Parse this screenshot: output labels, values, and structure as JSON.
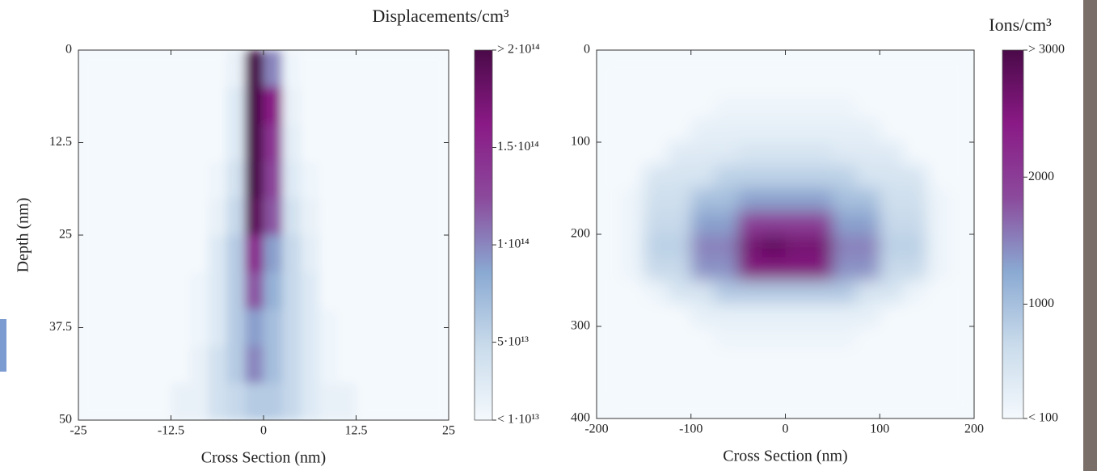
{
  "chart_data": [
    {
      "type": "heatmap",
      "xlabel": "Cross Section (nm)",
      "ylabel": "Depth (nm)",
      "x": [
        -23.75,
        -21.25,
        -18.75,
        -16.25,
        -13.75,
        -11.25,
        -8.75,
        -6.25,
        -3.75,
        -1.25,
        1.25,
        3.75,
        6.25,
        8.75,
        11.25,
        13.75,
        16.25,
        18.75,
        21.25,
        23.75
      ],
      "y": [
        2.5,
        7.5,
        12.5,
        17.5,
        22.5,
        27.5,
        32.5,
        37.5,
        42.5,
        47.5
      ],
      "values": [
        [
          10000000000000.0,
          10000000000000.0,
          10000000000000.0,
          10000000000000.0,
          10000000000000.0,
          10000000000000.0,
          10000000000000.0,
          10000000000000.0,
          20000000000000.0,
          200000000000000.0,
          100000000000000.0,
          15000000000000.0,
          10000000000000.0,
          10000000000000.0,
          10000000000000.0,
          10000000000000.0,
          10000000000000.0,
          10000000000000.0,
          10000000000000.0,
          10000000000000.0
        ],
        [
          10000000000000.0,
          10000000000000.0,
          10000000000000.0,
          10000000000000.0,
          10000000000000.0,
          10000000000000.0,
          10000000000000.0,
          10000000000000.0,
          30000000000000.0,
          200000000000000.0,
          160000000000000.0,
          20000000000000.0,
          10000000000000.0,
          10000000000000.0,
          10000000000000.0,
          10000000000000.0,
          10000000000000.0,
          10000000000000.0,
          10000000000000.0,
          10000000000000.0
        ],
        [
          10000000000000.0,
          10000000000000.0,
          10000000000000.0,
          10000000000000.0,
          10000000000000.0,
          10000000000000.0,
          10000000000000.0,
          10000000000000.0,
          30000000000000.0,
          200000000000000.0,
          140000000000000.0,
          25000000000000.0,
          10000000000000.0,
          10000000000000.0,
          10000000000000.0,
          10000000000000.0,
          10000000000000.0,
          10000000000000.0,
          10000000000000.0,
          10000000000000.0
        ],
        [
          10000000000000.0,
          10000000000000.0,
          10000000000000.0,
          10000000000000.0,
          10000000000000.0,
          10000000000000.0,
          10000000000000.0,
          15000000000000.0,
          40000000000000.0,
          200000000000000.0,
          130000000000000.0,
          30000000000000.0,
          15000000000000.0,
          10000000000000.0,
          10000000000000.0,
          10000000000000.0,
          10000000000000.0,
          10000000000000.0,
          10000000000000.0,
          10000000000000.0
        ],
        [
          10000000000000.0,
          10000000000000.0,
          10000000000000.0,
          10000000000000.0,
          10000000000000.0,
          10000000000000.0,
          10000000000000.0,
          20000000000000.0,
          50000000000000.0,
          190000000000000.0,
          120000000000000.0,
          40000000000000.0,
          20000000000000.0,
          10000000000000.0,
          10000000000000.0,
          10000000000000.0,
          10000000000000.0,
          10000000000000.0,
          10000000000000.0,
          10000000000000.0
        ],
        [
          10000000000000.0,
          10000000000000.0,
          10000000000000.0,
          10000000000000.0,
          10000000000000.0,
          10000000000000.0,
          10000000000000.0,
          30000000000000.0,
          60000000000000.0,
          150000000000000.0,
          90000000000000.0,
          50000000000000.0,
          25000000000000.0,
          10000000000000.0,
          10000000000000.0,
          10000000000000.0,
          10000000000000.0,
          10000000000000.0,
          10000000000000.0,
          10000000000000.0
        ],
        [
          10000000000000.0,
          10000000000000.0,
          10000000000000.0,
          10000000000000.0,
          10000000000000.0,
          10000000000000.0,
          15000000000000.0,
          30000000000000.0,
          60000000000000.0,
          120000000000000.0,
          80000000000000.0,
          50000000000000.0,
          30000000000000.0,
          10000000000000.0,
          10000000000000.0,
          10000000000000.0,
          10000000000000.0,
          10000000000000.0,
          10000000000000.0,
          10000000000000.0
        ],
        [
          10000000000000.0,
          10000000000000.0,
          10000000000000.0,
          10000000000000.0,
          10000000000000.0,
          10000000000000.0,
          15000000000000.0,
          30000000000000.0,
          60000000000000.0,
          90000000000000.0,
          70000000000000.0,
          50000000000000.0,
          30000000000000.0,
          15000000000000.0,
          10000000000000.0,
          10000000000000.0,
          10000000000000.0,
          10000000000000.0,
          10000000000000.0,
          10000000000000.0
        ],
        [
          10000000000000.0,
          10000000000000.0,
          10000000000000.0,
          10000000000000.0,
          10000000000000.0,
          10000000000000.0,
          20000000000000.0,
          40000000000000.0,
          60000000000000.0,
          100000000000000.0,
          70000000000000.0,
          50000000000000.0,
          30000000000000.0,
          15000000000000.0,
          10000000000000.0,
          10000000000000.0,
          10000000000000.0,
          10000000000000.0,
          10000000000000.0,
          10000000000000.0
        ],
        [
          10000000000000.0,
          10000000000000.0,
          10000000000000.0,
          10000000000000.0,
          10000000000000.0,
          20000000000000.0,
          20000000000000.0,
          40000000000000.0,
          50000000000000.0,
          60000000000000.0,
          60000000000000.0,
          50000000000000.0,
          30000000000000.0,
          20000000000000.0,
          20000000000000.0,
          10000000000000.0,
          10000000000000.0,
          10000000000000.0,
          10000000000000.0,
          10000000000000.0
        ]
      ],
      "xlim": [
        -25,
        25
      ],
      "ylim": [
        0,
        50
      ],
      "y_inverted": true,
      "xticks": [
        -25,
        -12.5,
        0,
        12.5,
        25
      ],
      "yticks": [
        0,
        12.5,
        25,
        37.5,
        50
      ],
      "colormap": [
        "#f4f9fd",
        "#c9dbeb",
        "#8aa9d2",
        "#8b4a9c",
        "#8a1a86",
        "#4a0a48"
      ],
      "colorbar": {
        "label": "Displacements/cm³",
        "lim": [
          10000000000000.0,
          200000000000000.0
        ],
        "ticks": [
          {
            "value": 200000000000000.0,
            "label": "> 2·10¹⁴"
          },
          {
            "value": 150000000000000.0,
            "label": "1.5·10¹⁴"
          },
          {
            "value": 100000000000000.0,
            "label": "1·10¹⁴"
          },
          {
            "value": 50000000000000.0,
            "label": "5·10¹³"
          },
          {
            "value": 10000000000000.0,
            "label": "< 1·10¹³"
          }
        ]
      }
    },
    {
      "type": "heatmap",
      "xlabel": "Cross Section (nm)",
      "x": [
        -187.5,
        -162.5,
        -137.5,
        -112.5,
        -87.5,
        -62.5,
        -37.5,
        -12.5,
        12.5,
        37.5,
        62.5,
        87.5,
        112.5,
        137.5,
        162.5,
        187.5
      ],
      "y": [
        12.5,
        37.5,
        62.5,
        87.5,
        112.5,
        137.5,
        162.5,
        187.5,
        212.5,
        237.5,
        262.5,
        287.5,
        312.5,
        337.5,
        362.5,
        387.5
      ],
      "values": [
        [
          100,
          100,
          100,
          100,
          100,
          100,
          100,
          100,
          100,
          100,
          100,
          100,
          100,
          100,
          100,
          100
        ],
        [
          100,
          100,
          100,
          100,
          100,
          100,
          100,
          100,
          100,
          100,
          100,
          100,
          100,
          100,
          100,
          100
        ],
        [
          100,
          100,
          100,
          100,
          100,
          200,
          200,
          200,
          200,
          200,
          200,
          100,
          100,
          100,
          100,
          100
        ],
        [
          100,
          100,
          100,
          100,
          300,
          300,
          300,
          300,
          300,
          300,
          300,
          300,
          100,
          100,
          100,
          100
        ],
        [
          100,
          100,
          100,
          400,
          400,
          400,
          500,
          500,
          500,
          500,
          400,
          400,
          400,
          100,
          100,
          100
        ],
        [
          100,
          100,
          500,
          500,
          500,
          800,
          800,
          800,
          800,
          800,
          800,
          500,
          500,
          500,
          100,
          100
        ],
        [
          100,
          200,
          600,
          600,
          1000,
          1000,
          1300,
          1300,
          1300,
          1300,
          1000,
          1000,
          600,
          600,
          200,
          100
        ],
        [
          100,
          200,
          700,
          700,
          1300,
          1300,
          2000,
          2000,
          2000,
          2000,
          1300,
          1300,
          700,
          700,
          200,
          100
        ],
        [
          100,
          200,
          800,
          800,
          1500,
          1500,
          2600,
          2800,
          2600,
          2600,
          1500,
          1500,
          800,
          800,
          200,
          100
        ],
        [
          100,
          200,
          700,
          700,
          1400,
          1400,
          2500,
          2500,
          2500,
          2500,
          1400,
          1400,
          700,
          700,
          200,
          100
        ],
        [
          100,
          100,
          200,
          500,
          500,
          900,
          900,
          900,
          900,
          900,
          900,
          500,
          500,
          200,
          100,
          100
        ],
        [
          100,
          100,
          100,
          100,
          300,
          300,
          300,
          300,
          300,
          300,
          300,
          300,
          100,
          100,
          100,
          100
        ],
        [
          100,
          100,
          100,
          100,
          100,
          200,
          200,
          200,
          200,
          200,
          200,
          100,
          100,
          100,
          100,
          100
        ],
        [
          100,
          100,
          100,
          100,
          100,
          100,
          100,
          100,
          100,
          100,
          100,
          100,
          100,
          100,
          100,
          100
        ],
        [
          100,
          100,
          100,
          100,
          100,
          100,
          100,
          100,
          100,
          100,
          100,
          100,
          100,
          100,
          100,
          100
        ],
        [
          100,
          100,
          100,
          100,
          100,
          100,
          100,
          100,
          100,
          100,
          100,
          100,
          100,
          100,
          100,
          100
        ]
      ],
      "xlim": [
        -200,
        200
      ],
      "ylim": [
        0,
        400
      ],
      "y_inverted": true,
      "xticks": [
        -200,
        -100,
        0,
        100,
        200
      ],
      "yticks": [
        0,
        100,
        200,
        300,
        400
      ],
      "colormap": [
        "#f4f9fd",
        "#c9dbeb",
        "#8aa9d2",
        "#8b4a9c",
        "#8a1a86",
        "#4a0a48"
      ],
      "colorbar": {
        "label": "Ions/cm³",
        "lim": [
          100,
          3000
        ],
        "ticks": [
          {
            "value": 3000,
            "label": "> 3000"
          },
          {
            "value": 2000,
            "label": "2000"
          },
          {
            "value": 1000,
            "label": "1000"
          },
          {
            "value": 100,
            "label": "< 100"
          }
        ]
      }
    }
  ]
}
